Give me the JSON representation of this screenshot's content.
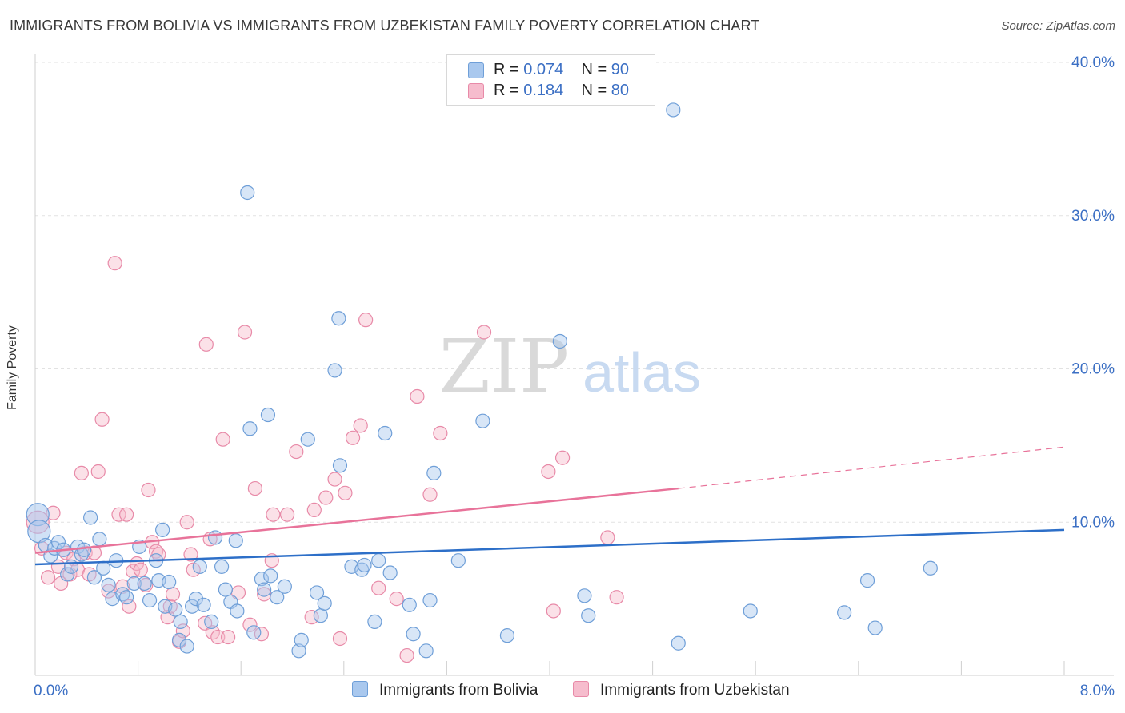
{
  "header": {
    "title": "IMMIGRANTS FROM BOLIVIA VS IMMIGRANTS FROM UZBEKISTAN FAMILY POVERTY CORRELATION CHART",
    "source": "Source: ZipAtlas.com"
  },
  "watermark": {
    "zip": "ZIP",
    "atlas": "atlas"
  },
  "colors": {
    "bolivia_fill": "#a9c8ee",
    "bolivia_stroke": "#6f9fd8",
    "bolivia_line": "#2d6fc8",
    "uzbekistan_fill": "#f6bccd",
    "uzbekistan_stroke": "#e88aa8",
    "uzbekistan_line": "#e8739a",
    "tick_label": "#3b6fc4"
  },
  "legend_stats": [
    {
      "r_label": "R =",
      "r_value": "0.074",
      "n_label": "N =",
      "n_value": "90"
    },
    {
      "r_label": "R =",
      "r_value": "0.184",
      "n_label": "N =",
      "n_value": "80"
    }
  ],
  "chart_data": {
    "type": "scatter",
    "title": "IMMIGRANTS FROM BOLIVIA VS IMMIGRANTS FROM UZBEKISTAN FAMILY POVERTY CORRELATION CHART",
    "xlabel": "",
    "ylabel": "Family Poverty",
    "xlim": [
      0,
      8
    ],
    "ylim": [
      0,
      40
    ],
    "x_tick_labels": [
      "0.0%",
      "8.0%"
    ],
    "y_ticks": [
      10,
      20,
      30,
      40
    ],
    "y_tick_labels": [
      "10.0%",
      "20.0%",
      "30.0%",
      "40.0%"
    ],
    "grid": true,
    "legend_position": "bottom",
    "series": [
      {
        "name": "Immigrants from Bolivia",
        "r": 0.074,
        "n": 90,
        "trend": {
          "x0": 0,
          "y0": 7.25,
          "x1": 8,
          "y1": 9.5
        },
        "points": [
          [
            0.02,
            10.5
          ],
          [
            0.03,
            9.4
          ],
          [
            0.08,
            8.5
          ],
          [
            0.12,
            7.8
          ],
          [
            0.15,
            8.3
          ],
          [
            0.18,
            8.7
          ],
          [
            0.22,
            8.2
          ],
          [
            0.25,
            6.6
          ],
          [
            0.28,
            7.1
          ],
          [
            0.33,
            8.4
          ],
          [
            0.36,
            7.9
          ],
          [
            0.38,
            8.2
          ],
          [
            0.43,
            10.3
          ],
          [
            0.46,
            6.4
          ],
          [
            0.5,
            8.9
          ],
          [
            0.53,
            7.0
          ],
          [
            0.57,
            5.9
          ],
          [
            0.6,
            5.0
          ],
          [
            0.63,
            7.5
          ],
          [
            0.68,
            5.3
          ],
          [
            0.71,
            5.1
          ],
          [
            0.77,
            6.0
          ],
          [
            0.81,
            8.4
          ],
          [
            0.85,
            6.0
          ],
          [
            0.89,
            4.9
          ],
          [
            0.94,
            7.5
          ],
          [
            0.96,
            6.2
          ],
          [
            0.99,
            9.5
          ],
          [
            1.01,
            4.5
          ],
          [
            1.04,
            6.1
          ],
          [
            1.09,
            4.3
          ],
          [
            1.13,
            3.5
          ],
          [
            1.12,
            2.3
          ],
          [
            1.18,
            1.9
          ],
          [
            1.22,
            4.5
          ],
          [
            1.25,
            5.0
          ],
          [
            1.28,
            7.1
          ],
          [
            1.31,
            4.6
          ],
          [
            1.37,
            3.5
          ],
          [
            1.4,
            9.0
          ],
          [
            1.45,
            7.1
          ],
          [
            1.48,
            5.6
          ],
          [
            1.52,
            4.8
          ],
          [
            1.56,
            8.8
          ],
          [
            1.57,
            4.2
          ],
          [
            1.65,
            31.5
          ],
          [
            1.67,
            16.1
          ],
          [
            1.7,
            2.8
          ],
          [
            1.76,
            6.3
          ],
          [
            1.78,
            5.6
          ],
          [
            1.81,
            17.0
          ],
          [
            1.83,
            6.5
          ],
          [
            1.88,
            5.1
          ],
          [
            1.94,
            5.8
          ],
          [
            2.05,
            1.6
          ],
          [
            2.07,
            2.3
          ],
          [
            2.12,
            15.4
          ],
          [
            2.19,
            5.4
          ],
          [
            2.22,
            3.9
          ],
          [
            2.25,
            4.7
          ],
          [
            2.33,
            19.9
          ],
          [
            2.36,
            23.3
          ],
          [
            2.37,
            13.7
          ],
          [
            2.46,
            7.1
          ],
          [
            2.54,
            6.9
          ],
          [
            2.56,
            7.2
          ],
          [
            2.64,
            3.5
          ],
          [
            2.67,
            7.5
          ],
          [
            2.72,
            15.8
          ],
          [
            2.76,
            6.7
          ],
          [
            2.91,
            4.6
          ],
          [
            2.94,
            2.7
          ],
          [
            3.04,
            1.6
          ],
          [
            3.07,
            4.9
          ],
          [
            3.1,
            13.2
          ],
          [
            3.29,
            7.5
          ],
          [
            3.48,
            16.6
          ],
          [
            3.67,
            2.6
          ],
          [
            4.08,
            21.8
          ],
          [
            4.27,
            5.2
          ],
          [
            4.3,
            3.9
          ],
          [
            4.96,
            36.9
          ],
          [
            5.0,
            2.1
          ],
          [
            5.56,
            4.2
          ],
          [
            6.29,
            4.1
          ],
          [
            6.47,
            6.2
          ],
          [
            6.53,
            3.1
          ],
          [
            6.96,
            7.0
          ]
        ]
      },
      {
        "name": "Immigrants from Uzbekistan",
        "r": 0.184,
        "n": 80,
        "trend": {
          "x0": 0,
          "y0": 8.0,
          "x1": 5.0,
          "y1": 12.2
        },
        "trend_projection": {
          "x0": 5.0,
          "y0": 12.2,
          "x1": 8.0,
          "y1": 14.9
        },
        "points": [
          [
            0.02,
            10.0
          ],
          [
            0.05,
            8.3
          ],
          [
            0.1,
            6.4
          ],
          [
            0.14,
            10.6
          ],
          [
            0.18,
            7.1
          ],
          [
            0.2,
            6.0
          ],
          [
            0.24,
            8.0
          ],
          [
            0.27,
            6.6
          ],
          [
            0.3,
            7.6
          ],
          [
            0.33,
            6.9
          ],
          [
            0.36,
            13.2
          ],
          [
            0.39,
            8.0
          ],
          [
            0.42,
            6.6
          ],
          [
            0.46,
            8.0
          ],
          [
            0.49,
            13.3
          ],
          [
            0.52,
            16.7
          ],
          [
            0.57,
            5.5
          ],
          [
            0.62,
            26.9
          ],
          [
            0.65,
            10.5
          ],
          [
            0.68,
            5.8
          ],
          [
            0.71,
            10.5
          ],
          [
            0.73,
            4.5
          ],
          [
            0.76,
            6.8
          ],
          [
            0.79,
            7.3
          ],
          [
            0.82,
            6.9
          ],
          [
            0.86,
            5.9
          ],
          [
            0.88,
            12.1
          ],
          [
            0.91,
            8.7
          ],
          [
            0.94,
            8.1
          ],
          [
            0.96,
            7.9
          ],
          [
            1.03,
            3.8
          ],
          [
            1.05,
            4.5
          ],
          [
            1.07,
            5.3
          ],
          [
            1.12,
            2.2
          ],
          [
            1.15,
            2.9
          ],
          [
            1.18,
            10.0
          ],
          [
            1.21,
            7.9
          ],
          [
            1.23,
            6.9
          ],
          [
            1.32,
            3.4
          ],
          [
            1.33,
            21.6
          ],
          [
            1.36,
            8.9
          ],
          [
            1.38,
            2.8
          ],
          [
            1.42,
            2.5
          ],
          [
            1.46,
            15.4
          ],
          [
            1.5,
            2.5
          ],
          [
            1.58,
            5.4
          ],
          [
            1.63,
            22.4
          ],
          [
            1.67,
            3.3
          ],
          [
            1.71,
            12.2
          ],
          [
            1.76,
            2.7
          ],
          [
            1.78,
            5.3
          ],
          [
            1.84,
            7.5
          ],
          [
            1.85,
            10.5
          ],
          [
            1.96,
            10.5
          ],
          [
            2.03,
            14.6
          ],
          [
            2.15,
            3.8
          ],
          [
            2.17,
            10.8
          ],
          [
            2.26,
            11.6
          ],
          [
            2.33,
            12.8
          ],
          [
            2.37,
            2.4
          ],
          [
            2.41,
            11.9
          ],
          [
            2.47,
            15.5
          ],
          [
            2.53,
            16.3
          ],
          [
            2.57,
            23.2
          ],
          [
            2.67,
            5.7
          ],
          [
            2.81,
            5.0
          ],
          [
            2.89,
            1.3
          ],
          [
            2.97,
            18.2
          ],
          [
            3.07,
            11.8
          ],
          [
            3.15,
            15.8
          ],
          [
            3.49,
            22.4
          ],
          [
            3.99,
            13.3
          ],
          [
            4.03,
            4.2
          ],
          [
            4.1,
            14.2
          ],
          [
            4.45,
            9.0
          ],
          [
            4.52,
            5.1
          ]
        ]
      }
    ]
  }
}
